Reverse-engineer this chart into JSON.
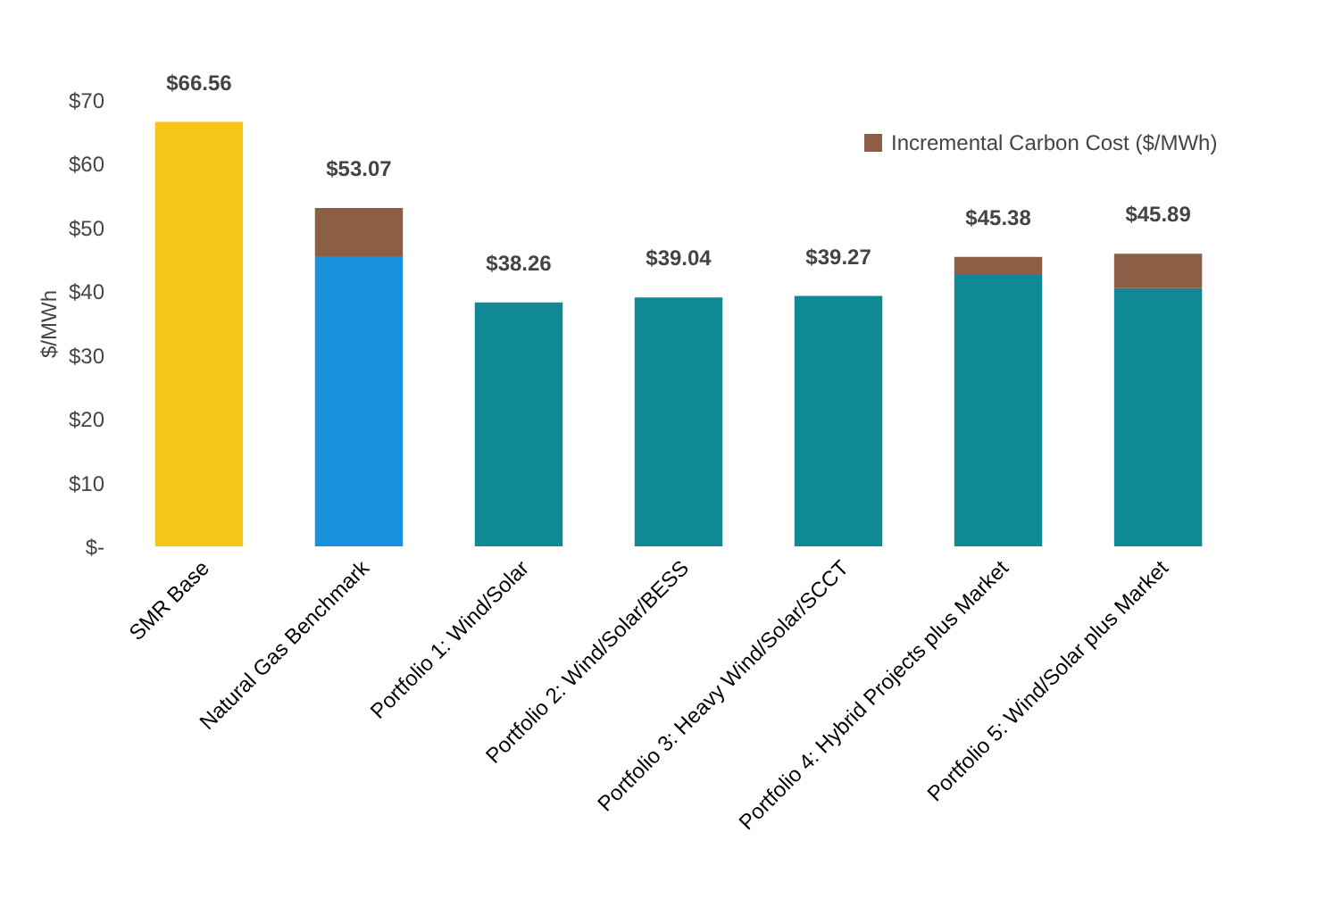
{
  "chart_data": {
    "type": "bar",
    "stacked": true,
    "ylabel": "$/MWh",
    "categories": [
      "SMR Base",
      "Natural Gas Benchmark",
      "Portfolio 1: Wind/Solar",
      "Portfolio 2: Wind/Solar/BESS",
      "Portfolio 3: Heavy Wind/Solar/SCCT",
      "Portfolio 4: Hybrid Projects plus Market",
      "Portfolio 5: Wind/Solar plus Market"
    ],
    "series": [
      {
        "colors": [
          "#f5c518",
          "#1a8fdc",
          "#0f8a94",
          "#0f8a94",
          "#0f8a94",
          "#0f8a94",
          "#0f8a94"
        ],
        "values": [
          66.56,
          45.5,
          38.26,
          39.04,
          39.27,
          42.7,
          40.5
        ]
      },
      {
        "name": "Incremental Carbon Cost ($/MWh)",
        "color": "#8b5e45",
        "values": [
          null,
          7.57,
          null,
          null,
          null,
          2.68,
          5.39
        ]
      }
    ],
    "totals": [
      "$66.56",
      "$53.07",
      "$38.26",
      "$39.04",
      "$39.27",
      "$45.38",
      "$45.89"
    ],
    "ylim": [
      0,
      70
    ],
    "yticks": [
      {
        "value": 0,
        "label": "$-"
      },
      {
        "value": 10,
        "label": "$10"
      },
      {
        "value": 20,
        "label": "$20"
      },
      {
        "value": 30,
        "label": "$30"
      },
      {
        "value": 40,
        "label": "$40"
      },
      {
        "value": 50,
        "label": "$50"
      },
      {
        "value": 60,
        "label": "$60"
      },
      {
        "value": 70,
        "label": "$70"
      }
    ],
    "grid": false,
    "legend": "top right"
  }
}
